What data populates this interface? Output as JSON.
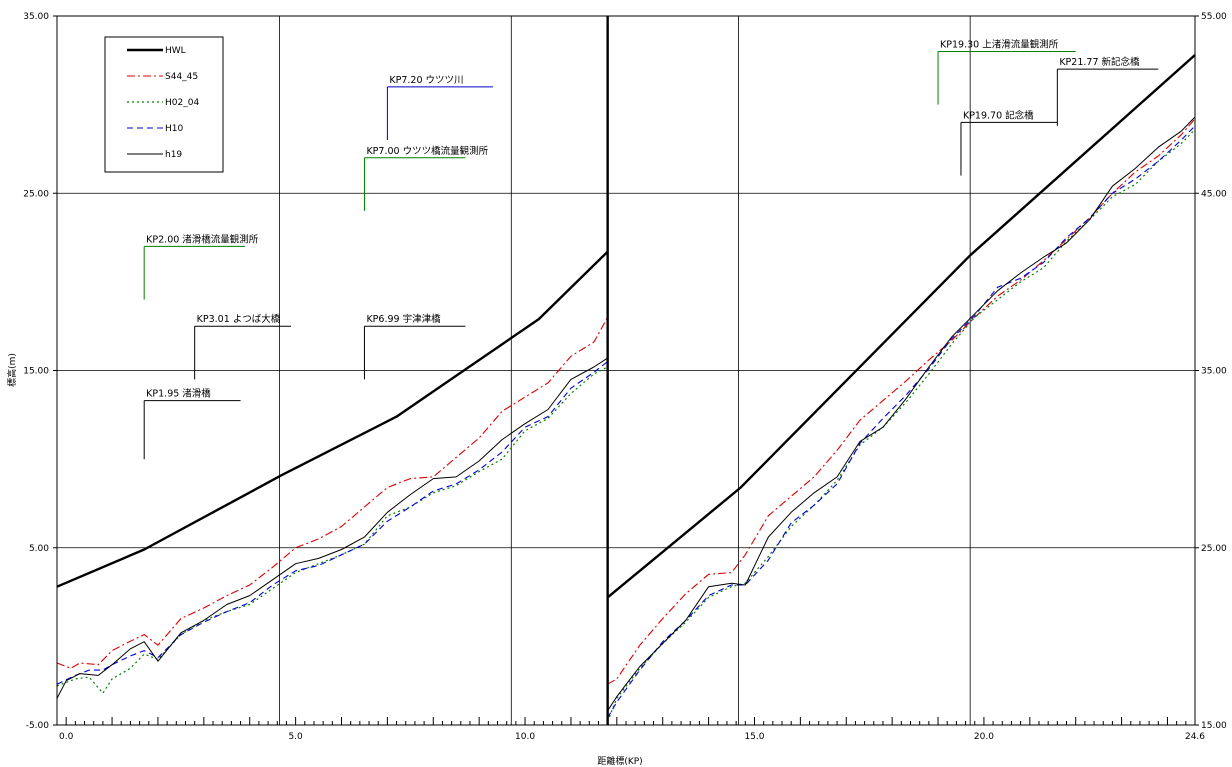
{
  "chart_data": {
    "type": "line",
    "xlabel": "距離標(KP)",
    "ylabel": "標高(m)",
    "grid": true,
    "legend_position": "top-left",
    "xlim": [
      -0.2,
      24.6
    ],
    "panel_break_kp": 11.8,
    "left_axis": {
      "ylim": [
        -5,
        35
      ],
      "tick_values": [
        -5,
        5,
        15,
        25,
        35
      ],
      "tick_labels": [
        "-5.00",
        "5.00",
        "15.00",
        "25.00",
        "35.00"
      ]
    },
    "right_axis": {
      "ylim": [
        15,
        55
      ],
      "tick_values": [
        15,
        25,
        35,
        45,
        55
      ],
      "tick_labels": [
        "15.00",
        "25.00",
        "35.00",
        "45.00",
        "55.00"
      ]
    },
    "x_tick_labels": [
      {
        "kp": 0.0,
        "label": "0.0"
      },
      {
        "kp": 5.0,
        "label": "5.0"
      },
      {
        "kp": 10.0,
        "label": "10.0"
      },
      {
        "kp": 15.0,
        "label": "15.0"
      },
      {
        "kp": 20.0,
        "label": "20.0"
      },
      {
        "kp": 24.6,
        "label": "24.6"
      }
    ],
    "vertical_gridlines_kp": [
      4.65,
      9.7,
      14.65,
      19.7
    ],
    "series": [
      {
        "name": "HWL",
        "color": "#000000",
        "dash": "",
        "width": 2.4,
        "axis": "left",
        "x": [
          -0.2,
          1.7,
          4.7,
          7.2,
          10.3,
          11.8
        ],
        "y": [
          2.8,
          4.9,
          9.1,
          12.4,
          17.9,
          21.7
        ]
      },
      {
        "name": "HWL",
        "color": "#000000",
        "dash": "",
        "width": 2.4,
        "axis": "right",
        "x": [
          11.8,
          14.7,
          19.7,
          24.6
        ],
        "y": [
          22.2,
          28.4,
          41.5,
          52.8
        ]
      },
      {
        "name": "S44_45",
        "color": "#dd0000",
        "dash": "8,3,2,3",
        "width": 1.1,
        "axis": "left",
        "x": [
          -0.2,
          0.1,
          0.3,
          0.7,
          1.0,
          1.3,
          1.7,
          2.0,
          2.5,
          3.0,
          3.5,
          4.0,
          4.5,
          5.0,
          5.5,
          6.0,
          6.5,
          7.0,
          7.5,
          8.0,
          8.5,
          9.0,
          9.5,
          10.0,
          10.5,
          11.0,
          11.5,
          11.8
        ],
        "y": [
          -1.5,
          -1.8,
          -1.5,
          -1.6,
          -0.8,
          -0.4,
          0.1,
          -0.5,
          1.0,
          1.6,
          2.3,
          2.9,
          3.9,
          5.0,
          5.5,
          6.2,
          7.3,
          8.4,
          8.9,
          9.0,
          10.1,
          11.2,
          12.7,
          13.5,
          14.3,
          15.8,
          16.6,
          18.0
        ]
      },
      {
        "name": "S44_45",
        "color": "#dd0000",
        "dash": "8,3,2,3",
        "width": 1.1,
        "axis": "right",
        "x": [
          11.8,
          12.0,
          12.5,
          13.0,
          13.5,
          14.0,
          14.5,
          14.8,
          15.3,
          15.8,
          16.3,
          16.8,
          17.3,
          17.8,
          18.3,
          18.8,
          19.3,
          19.8,
          20.3,
          20.8,
          21.3,
          21.8,
          22.3,
          22.8,
          23.3,
          23.8,
          24.3,
          24.6
        ],
        "y": [
          17.3,
          17.6,
          19.5,
          21.0,
          22.4,
          23.5,
          23.6,
          24.6,
          26.8,
          27.9,
          29.0,
          30.5,
          32.2,
          33.3,
          34.4,
          35.6,
          36.7,
          38.0,
          39.2,
          40.1,
          41.2,
          42.4,
          43.6,
          45.0,
          46.2,
          47.1,
          48.3,
          49.2
        ]
      },
      {
        "name": "H02_04",
        "color": "#008000",
        "dash": "2,3",
        "width": 1.2,
        "axis": "left",
        "x": [
          -0.2,
          0.2,
          0.5,
          0.8,
          1.0,
          1.4,
          1.7,
          2.0,
          2.5,
          3.0,
          3.5,
          4.0,
          4.5,
          5.0,
          5.5,
          6.0,
          6.5,
          7.0,
          7.5,
          8.0,
          8.5,
          9.0,
          9.5,
          10.0,
          10.5,
          11.0,
          11.5,
          11.8
        ],
        "y": [
          -2.8,
          -2.4,
          -2.3,
          -3.2,
          -2.4,
          -1.8,
          -1.0,
          -1.3,
          0.1,
          0.9,
          1.4,
          1.8,
          2.7,
          3.6,
          4.1,
          4.6,
          5.2,
          6.8,
          7.3,
          8.1,
          8.5,
          9.3,
          10.0,
          11.6,
          12.3,
          13.7,
          14.8,
          15.2
        ]
      },
      {
        "name": "H02_04",
        "color": "#008000",
        "dash": "2,3",
        "width": 1.2,
        "axis": "right",
        "x": [
          11.8,
          12.0,
          12.5,
          13.0,
          13.5,
          14.0,
          14.5,
          14.8,
          15.3,
          15.8,
          16.3,
          16.8,
          17.3,
          17.8,
          18.3,
          18.8,
          19.3,
          19.8,
          20.3,
          20.8,
          21.3,
          21.8,
          22.3,
          22.8,
          23.3,
          23.8,
          24.3,
          24.6
        ],
        "y": [
          15.2,
          16.5,
          18.2,
          19.6,
          20.8,
          22.2,
          22.8,
          23.0,
          24.5,
          26.2,
          27.4,
          28.8,
          30.8,
          31.8,
          33.2,
          34.8,
          36.5,
          38.0,
          39.0,
          40.0,
          40.8,
          42.3,
          43.5,
          44.8,
          45.5,
          46.8,
          47.8,
          48.6
        ]
      },
      {
        "name": "H10",
        "color": "#0000dd",
        "dash": "6,4",
        "width": 1.1,
        "axis": "left",
        "x": [
          -0.2,
          0.2,
          0.5,
          0.8,
          1.0,
          1.4,
          1.7,
          2.0,
          2.5,
          3.0,
          3.5,
          4.0,
          4.5,
          5.0,
          5.5,
          6.0,
          6.5,
          7.0,
          7.5,
          8.0,
          8.5,
          9.0,
          9.5,
          10.0,
          10.5,
          11.0,
          11.5,
          11.8
        ],
        "y": [
          -2.7,
          -2.2,
          -1.9,
          -1.9,
          -1.6,
          -1.1,
          -0.8,
          -1.2,
          0.1,
          0.8,
          1.4,
          1.9,
          2.9,
          3.7,
          4.0,
          4.6,
          5.2,
          6.5,
          7.3,
          8.2,
          8.6,
          9.4,
          10.4,
          11.8,
          12.4,
          14.0,
          14.9,
          15.5
        ]
      },
      {
        "name": "H10",
        "color": "#0000dd",
        "dash": "6,4",
        "width": 1.1,
        "axis": "right",
        "x": [
          11.8,
          12.0,
          12.5,
          13.0,
          13.5,
          14.0,
          14.5,
          14.8,
          15.3,
          15.8,
          16.3,
          16.8,
          17.3,
          17.8,
          18.3,
          18.8,
          19.3,
          19.8,
          20.3,
          20.8,
          21.3,
          21.8,
          22.3,
          22.8,
          23.3,
          23.8,
          24.3,
          24.6
        ],
        "y": [
          15.4,
          16.3,
          18.1,
          19.7,
          20.9,
          22.3,
          22.9,
          22.9,
          24.3,
          26.4,
          27.4,
          28.6,
          30.9,
          32.3,
          33.6,
          35.1,
          36.8,
          38.1,
          39.7,
          40.2,
          41.1,
          42.5,
          43.6,
          45.0,
          45.8,
          46.8,
          48.0,
          48.8
        ]
      },
      {
        "name": "h19",
        "color": "#000000",
        "dash": "",
        "width": 1.0,
        "axis": "left",
        "x": [
          -0.2,
          0.0,
          0.3,
          0.7,
          1.0,
          1.4,
          1.7,
          2.0,
          2.5,
          3.0,
          3.5,
          4.0,
          4.5,
          5.0,
          5.5,
          6.0,
          6.5,
          7.0,
          7.5,
          8.0,
          8.5,
          9.0,
          9.5,
          10.0,
          10.5,
          11.0,
          11.5,
          11.8
        ],
        "y": [
          -3.5,
          -2.5,
          -2.1,
          -2.2,
          -1.6,
          -0.7,
          -0.3,
          -1.4,
          0.2,
          0.9,
          1.8,
          2.3,
          3.2,
          4.1,
          4.4,
          4.9,
          5.6,
          7.0,
          8.0,
          8.9,
          9.0,
          9.9,
          11.1,
          12.0,
          12.8,
          14.5,
          15.2,
          15.7
        ]
      },
      {
        "name": "h19",
        "color": "#000000",
        "dash": "",
        "width": 1.0,
        "axis": "right",
        "x": [
          11.8,
          12.0,
          12.5,
          13.0,
          13.5,
          14.0,
          14.5,
          14.8,
          15.3,
          15.8,
          16.3,
          16.8,
          17.3,
          17.8,
          18.3,
          18.8,
          19.3,
          19.8,
          20.3,
          20.8,
          21.3,
          21.8,
          22.3,
          22.8,
          23.3,
          23.8,
          24.3,
          24.6
        ],
        "y": [
          15.8,
          16.6,
          18.3,
          19.6,
          20.9,
          22.8,
          23.0,
          22.9,
          25.6,
          27.0,
          28.1,
          29.0,
          31.0,
          31.8,
          33.4,
          35.2,
          36.9,
          38.2,
          39.5,
          40.5,
          41.4,
          42.2,
          43.5,
          45.4,
          46.4,
          47.6,
          48.5,
          49.3
        ]
      }
    ],
    "legend": [
      {
        "name": "HWL",
        "color": "#000000",
        "dash": "",
        "width": 2.4
      },
      {
        "name": "S44_45",
        "color": "#dd0000",
        "dash": "8,3,2,3",
        "width": 1.1
      },
      {
        "name": "H02_04",
        "color": "#008000",
        "dash": "2,3",
        "width": 1.2
      },
      {
        "name": "H10",
        "color": "#0000dd",
        "dash": "6,4",
        "width": 1.1
      },
      {
        "name": "h19",
        "color": "#000000",
        "dash": "",
        "width": 1.0
      }
    ],
    "annotations": [
      {
        "label": "KP2.00 渚滑橋流量観測所",
        "kp": 1.7,
        "axis": "left",
        "y_low": 19.0,
        "y_high": 22.0,
        "x_end_kp": 3.9,
        "color": "#008000"
      },
      {
        "label": "KP3.01 よつば大橋",
        "kp": 2.8,
        "axis": "left",
        "y_low": 14.5,
        "y_high": 17.5,
        "x_end_kp": 4.9,
        "color": "#000000"
      },
      {
        "label": "KP1.95 渚滑橋",
        "kp": 1.7,
        "axis": "left",
        "y_low": 10.0,
        "y_high": 13.3,
        "x_end_kp": 3.8,
        "color": "#000000"
      },
      {
        "label": "KP7.20 ウツツ川",
        "kp": 7.0,
        "axis": "left",
        "y_low": 28.0,
        "y_high": 31.0,
        "x_end_kp": 9.3,
        "color": "#0000cc"
      },
      {
        "label": "KP7.00 ウツツ橋流量観測所",
        "kp": 6.5,
        "axis": "left",
        "y_low": 24.0,
        "y_high": 27.0,
        "x_end_kp": 8.7,
        "color": "#008000"
      },
      {
        "label": "KP6.99 宇津津橋",
        "kp": 6.5,
        "axis": "left",
        "y_low": 14.5,
        "y_high": 17.5,
        "x_end_kp": 8.7,
        "color": "#000000"
      },
      {
        "label": "KP19.30 上渚滑流量観測所",
        "kp": 19.0,
        "axis": "right",
        "y_low": 50.0,
        "y_high": 53.0,
        "x_end_kp": 22.0,
        "color": "#008000"
      },
      {
        "label": "KP21.77 新記念橋",
        "kp": 21.6,
        "axis": "right",
        "y_low": 48.8,
        "y_high": 52.0,
        "x_end_kp": 23.8,
        "color": "#000000"
      },
      {
        "label": "KP19.70 記念橋",
        "kp": 19.5,
        "axis": "right",
        "y_low": 46.0,
        "y_high": 49.0,
        "x_end_kp": 21.6,
        "color": "#000000"
      }
    ]
  }
}
